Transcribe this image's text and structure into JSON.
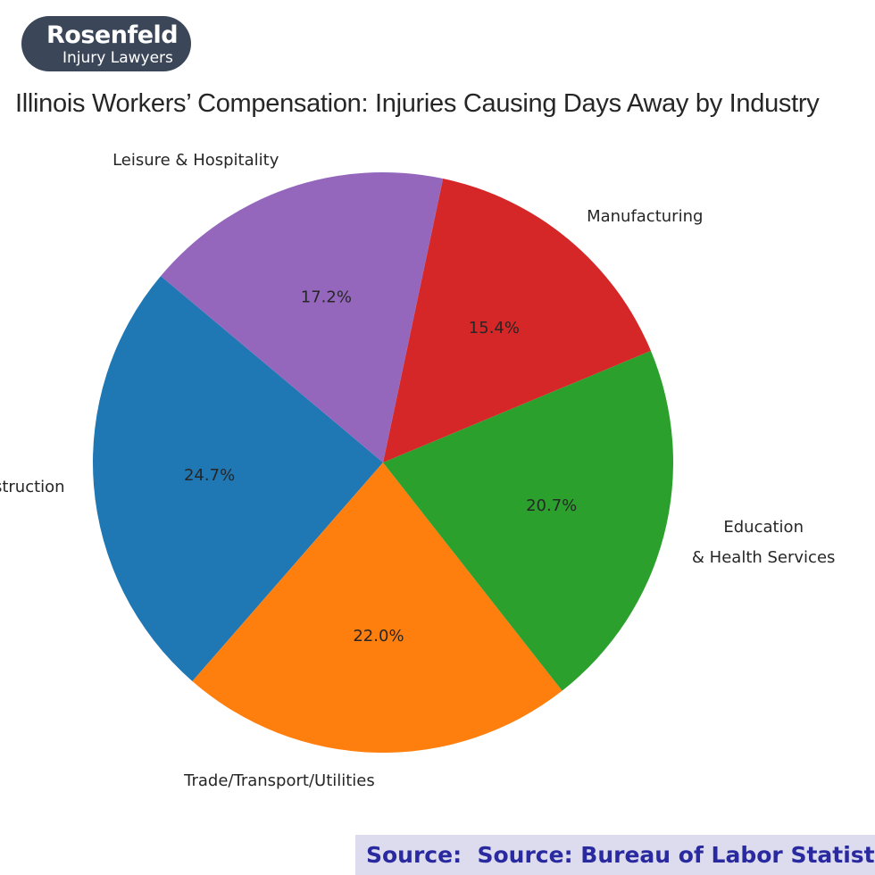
{
  "logo": {
    "name": "Rosenfeld",
    "tagline": "Injury Lawyers"
  },
  "chart_data": {
    "type": "pie",
    "title": "Illinois Workers’ Compensation: Injuries Causing Days Away by Industry",
    "categories": [
      "Construction",
      "Trade/Transport/Utilities",
      "Education\n& Health Services",
      "Manufacturing",
      "Leisure & Hospitality"
    ],
    "values": [
      24.7,
      22.0,
      20.7,
      15.4,
      17.2
    ],
    "value_labels": [
      "24.7%",
      "22.0%",
      "20.7%",
      "15.4%",
      "17.2%"
    ],
    "colors": [
      "#1f77b4",
      "#ff7f0e",
      "#2ca02c",
      "#d62728",
      "#9467bd"
    ],
    "start_angle": 140,
    "counterclock": true,
    "source": "Source:  Source: Bureau of Labor Statistics"
  }
}
